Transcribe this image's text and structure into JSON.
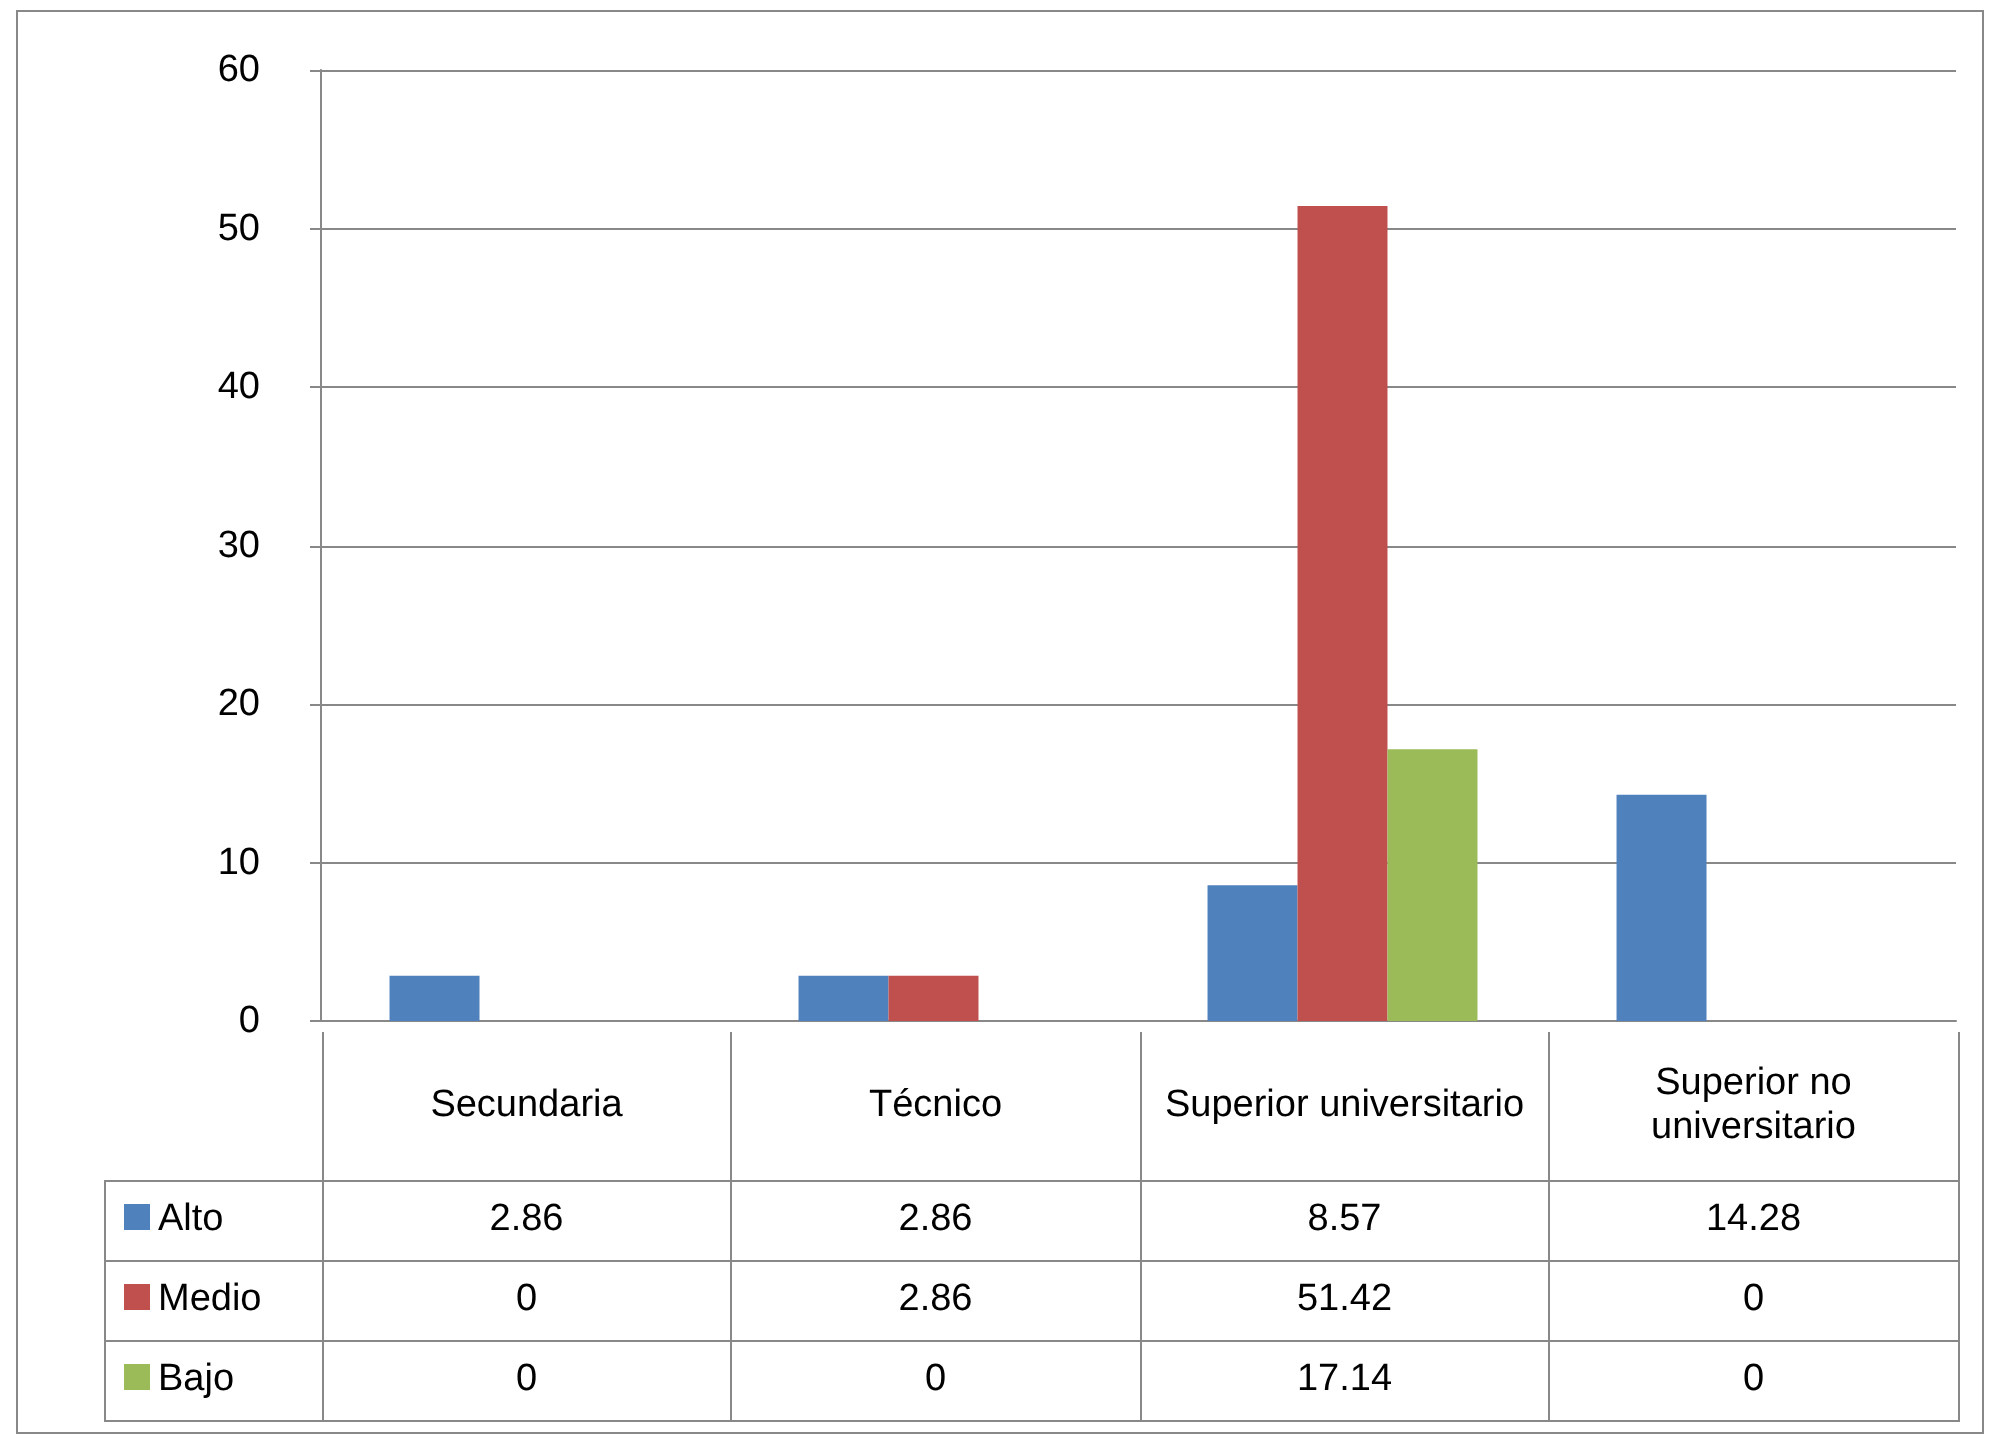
{
  "chart_data": {
    "type": "bar",
    "categories": [
      "Secundaria",
      "Técnico",
      "Superior universitario",
      "Superior no universitario"
    ],
    "series": [
      {
        "name": "Alto",
        "color": "#4f81bd",
        "values": [
          2.86,
          2.86,
          8.57,
          14.28
        ]
      },
      {
        "name": "Medio",
        "color": "#c0504d",
        "values": [
          0,
          2.86,
          51.42,
          0
        ]
      },
      {
        "name": "Bajo",
        "color": "#9bbb59",
        "values": [
          0,
          0,
          17.14,
          0
        ]
      }
    ],
    "ylim": [
      0,
      60
    ],
    "yticks": [
      0,
      10,
      20,
      30,
      40,
      50,
      60
    ],
    "grid": "y",
    "legend": "bottom",
    "data_labels": true
  }
}
